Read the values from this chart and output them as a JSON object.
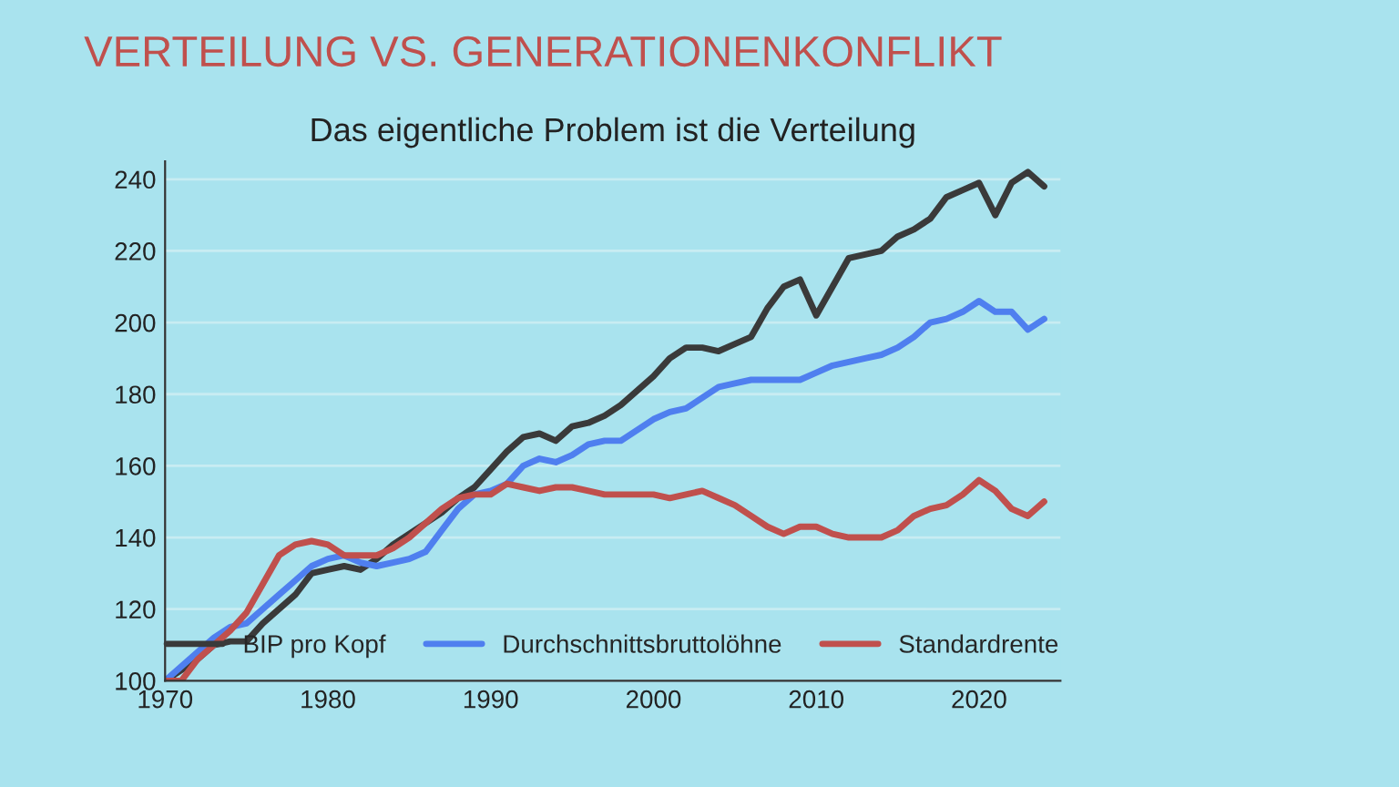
{
  "chart_data": {
    "type": "line",
    "title": "VERTEILUNG VS. GENERATIONENKONFLIKT",
    "subtitle": "Das eigentliche Problem ist die Verteilung",
    "x": [
      1970,
      1971,
      1972,
      1973,
      1974,
      1975,
      1976,
      1977,
      1978,
      1979,
      1980,
      1981,
      1982,
      1983,
      1984,
      1985,
      1986,
      1987,
      1988,
      1989,
      1990,
      1991,
      1992,
      1993,
      1994,
      1995,
      1996,
      1997,
      1998,
      1999,
      2000,
      2001,
      2002,
      2003,
      2004,
      2005,
      2006,
      2007,
      2008,
      2009,
      2010,
      2011,
      2012,
      2013,
      2014,
      2015,
      2016,
      2017,
      2018,
      2019,
      2020,
      2021,
      2022,
      2023,
      2024
    ],
    "series": [
      {
        "name": "BIP pro Kopf",
        "color": "#3a3a3a",
        "values": [
          100,
          103,
          106,
          110,
          111,
          111,
          116,
          120,
          124,
          130,
          131,
          132,
          131,
          134,
          138,
          141,
          144,
          147,
          151,
          154,
          159,
          164,
          168,
          169,
          167,
          171,
          172,
          174,
          177,
          181,
          185,
          190,
          193,
          193,
          192,
          194,
          196,
          204,
          210,
          212,
          202,
          210,
          218,
          219,
          220,
          224,
          226,
          229,
          235,
          237,
          239,
          230,
          239,
          242,
          238
        ]
      },
      {
        "name": "Durchschnittsbruttolöhne",
        "color": "#4f7fef",
        "values": [
          100,
          104,
          108,
          112,
          115,
          116,
          120,
          124,
          128,
          132,
          134,
          135,
          133,
          132,
          133,
          134,
          136,
          142,
          148,
          152,
          153,
          155,
          160,
          162,
          161,
          163,
          166,
          167,
          167,
          170,
          173,
          175,
          176,
          179,
          182,
          183,
          184,
          184,
          184,
          184,
          186,
          188,
          189,
          190,
          191,
          193,
          196,
          200,
          201,
          203,
          206,
          203,
          203,
          198,
          201
        ]
      },
      {
        "name": "Standardrente",
        "color": "#c0504d",
        "values": [
          100,
          100,
          106,
          110,
          114,
          119,
          127,
          135,
          138,
          139,
          138,
          135,
          135,
          135,
          137,
          140,
          144,
          148,
          151,
          152,
          152,
          155,
          154,
          153,
          154,
          154,
          153,
          152,
          152,
          152,
          152,
          151,
          152,
          153,
          151,
          149,
          146,
          143,
          141,
          143,
          143,
          141,
          140,
          140,
          140,
          142,
          146,
          148,
          149,
          152,
          156,
          153,
          148,
          146,
          150
        ]
      }
    ],
    "xlim": [
      1970,
      2025
    ],
    "xticks": [
      1970,
      1980,
      1990,
      2000,
      2010,
      2020
    ],
    "ylim": [
      100,
      245
    ],
    "yticks": [
      100,
      120,
      140,
      160,
      180,
      200,
      220,
      240
    ],
    "grid": "y",
    "legend": "bottom",
    "line_style": "solid",
    "marker": "none"
  }
}
